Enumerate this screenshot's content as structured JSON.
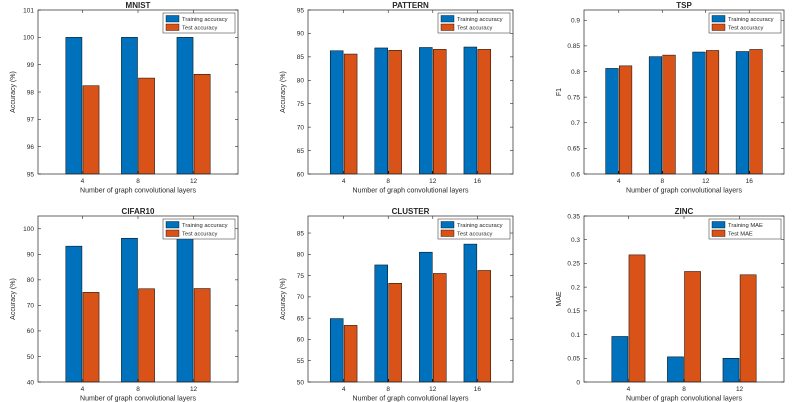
{
  "colors": {
    "training": "#0072BD",
    "test": "#D95319",
    "axis": "#262626",
    "bar_edge": "#000000"
  },
  "chart_data": [
    {
      "type": "bar",
      "title": "MNIST",
      "xlabel": "Number of graph convolutional layers",
      "ylabel": "Accuracy (%)",
      "ylim": [
        95,
        101
      ],
      "yticks": [
        95,
        96,
        97,
        98,
        99,
        100,
        101
      ],
      "ytick_labels": [
        "95",
        "96",
        "97",
        "98",
        "99",
        "100",
        "101"
      ],
      "categories": [
        "4",
        "8",
        "12"
      ],
      "series": [
        {
          "name": "Training accuracy",
          "values": [
            100.0,
            100.0,
            100.0
          ]
        },
        {
          "name": "Test accuracy",
          "values": [
            98.23,
            98.51,
            98.65
          ]
        }
      ],
      "legend": "top-right"
    },
    {
      "type": "bar",
      "title": "PATTERN",
      "xlabel": "Number of graph convolutional layers",
      "ylabel": "Accuracy (%)",
      "ylim": [
        60,
        95
      ],
      "yticks": [
        60,
        65,
        70,
        75,
        80,
        85,
        90,
        95
      ],
      "ytick_labels": [
        "60",
        "65",
        "70",
        "75",
        "80",
        "85",
        "90",
        "95"
      ],
      "categories": [
        "4",
        "8",
        "12",
        "16"
      ],
      "series": [
        {
          "name": "Training accuracy",
          "values": [
            86.3,
            86.9,
            87.0,
            87.1
          ]
        },
        {
          "name": "Test accuracy",
          "values": [
            85.6,
            86.4,
            86.6,
            86.6
          ]
        }
      ],
      "legend": "top-right"
    },
    {
      "type": "bar",
      "title": "TSP",
      "xlabel": "Number of graph convolutional layers",
      "ylabel": "F1",
      "ylim": [
        0.6,
        0.92
      ],
      "yticks": [
        0.6,
        0.65,
        0.7,
        0.75,
        0.8,
        0.85,
        0.9
      ],
      "ytick_labels": [
        "0.6",
        "0.65",
        "0.7",
        "0.75",
        "0.8",
        "0.85",
        "0.9"
      ],
      "categories": [
        "4",
        "8",
        "12",
        "16"
      ],
      "series": [
        {
          "name": "Training accuracy",
          "values": [
            0.806,
            0.829,
            0.838,
            0.839
          ]
        },
        {
          "name": "Test accuracy",
          "values": [
            0.811,
            0.832,
            0.841,
            0.843
          ]
        }
      ],
      "legend": "top-right"
    },
    {
      "type": "bar",
      "title": "CIFAR10",
      "xlabel": "Number of graph convolutional layers",
      "ylabel": "Accuracy (%)",
      "ylim": [
        40,
        105
      ],
      "yticks": [
        40,
        50,
        60,
        70,
        80,
        90,
        100
      ],
      "ytick_labels": [
        "40",
        "50",
        "60",
        "70",
        "80",
        "90",
        "100"
      ],
      "categories": [
        "4",
        "8",
        "12"
      ],
      "series": [
        {
          "name": "Training accuracy",
          "values": [
            93.2,
            96.3,
            96.7
          ]
        },
        {
          "name": "Test accuracy",
          "values": [
            75.1,
            76.5,
            76.6
          ]
        }
      ],
      "legend": "top-right"
    },
    {
      "type": "bar",
      "title": "CLUSTER",
      "xlabel": "Number of graph convolutional layers",
      "ylabel": "Accuracy (%)",
      "ylim": [
        50,
        89
      ],
      "yticks": [
        50,
        55,
        60,
        65,
        70,
        75,
        80,
        85
      ],
      "ytick_labels": [
        "50",
        "55",
        "60",
        "65",
        "70",
        "75",
        "80",
        "85"
      ],
      "categories": [
        "4",
        "8",
        "12",
        "16"
      ],
      "series": [
        {
          "name": "Training accuracy",
          "values": [
            64.9,
            77.5,
            80.5,
            82.4
          ]
        },
        {
          "name": "Test accuracy",
          "values": [
            63.3,
            73.2,
            75.5,
            76.2
          ]
        }
      ],
      "legend": "top-right"
    },
    {
      "type": "bar",
      "title": "ZINC",
      "xlabel": "Number of graph convolutional layers",
      "ylabel": "MAE",
      "ylim": [
        0,
        0.35
      ],
      "yticks": [
        0,
        0.05,
        0.1,
        0.15,
        0.2,
        0.25,
        0.3,
        0.35
      ],
      "ytick_labels": [
        "0",
        "0.05",
        "0.1",
        "0.15",
        "0.2",
        "0.25",
        "0.3",
        "0.35"
      ],
      "categories": [
        "4",
        "8",
        "12"
      ],
      "series": [
        {
          "name": "Training MAE",
          "values": [
            0.096,
            0.053,
            0.05
          ]
        },
        {
          "name": "Test MAE",
          "values": [
            0.268,
            0.233,
            0.226
          ]
        }
      ],
      "legend": "top-right"
    }
  ]
}
